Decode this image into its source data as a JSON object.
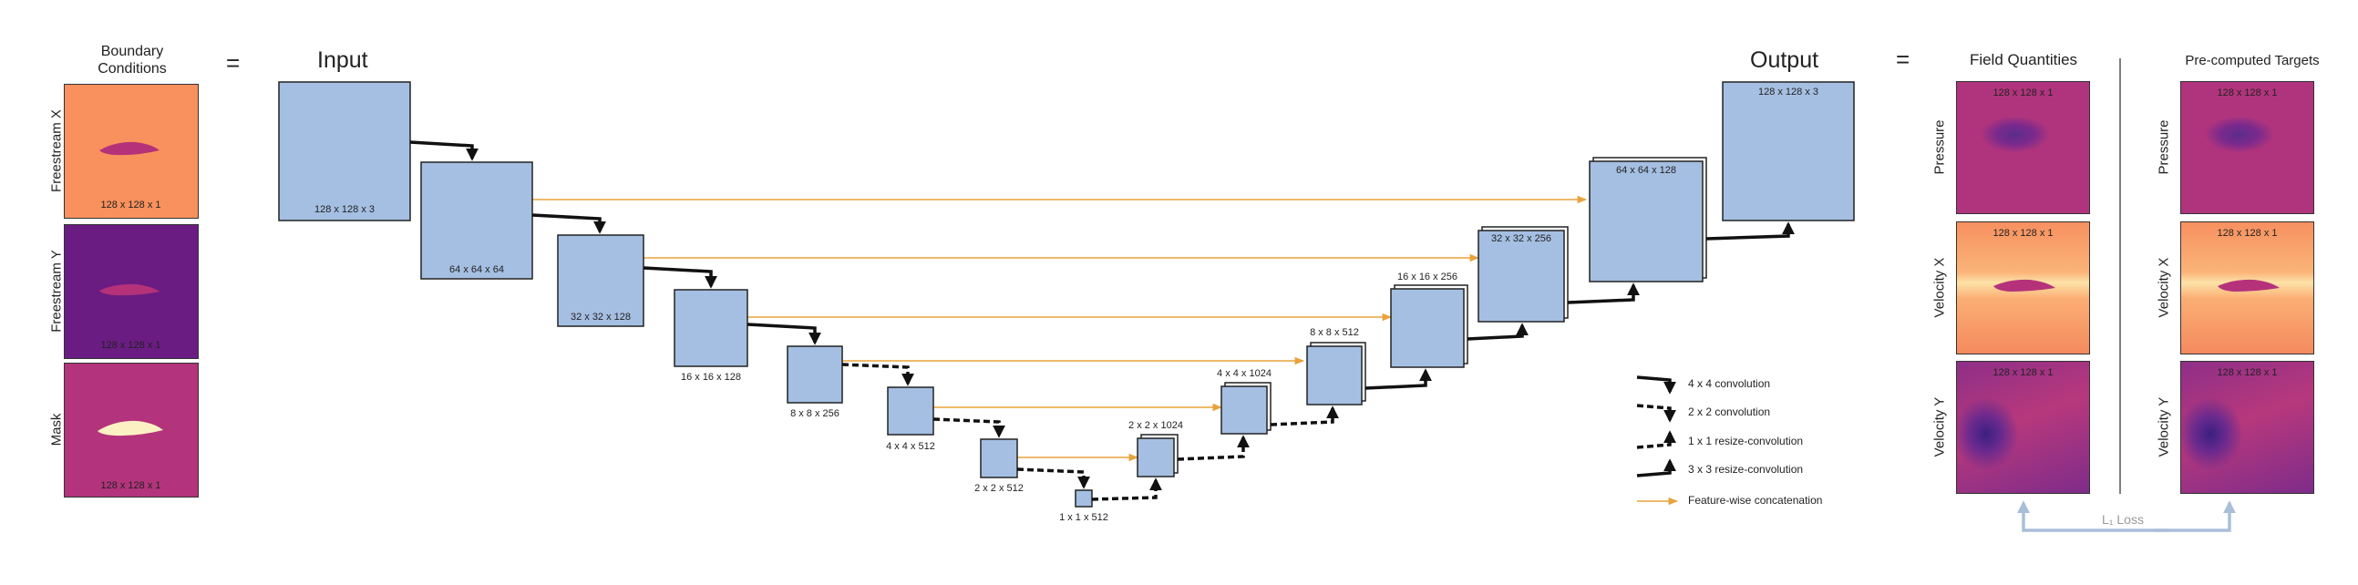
{
  "headers": {
    "boundary_conditions": "Boundary\nConditions",
    "equals_left": "=",
    "input": "Input",
    "output": "Output",
    "equals_right": "=",
    "field_quantities": "Field Quantities",
    "precomputed_targets": "Pre-computed Targets"
  },
  "boundary_tiles": [
    {
      "label": "Freestream X",
      "dims": "128 x 128 x 1"
    },
    {
      "label": "Freestream Y",
      "dims": "128 x 128 x 1"
    },
    {
      "label": "Mask",
      "dims": "128 x 128 x 1"
    }
  ],
  "encoder": [
    {
      "dims": "128 x 128 x 3"
    },
    {
      "dims": "64 x 64 x 64"
    },
    {
      "dims": "32 x 32 x 128"
    },
    {
      "dims": "16 x 16 x 128"
    },
    {
      "dims": "8 x 8 x 256"
    },
    {
      "dims": "4 x 4 x 512"
    },
    {
      "dims": "2 x 2 x 512"
    },
    {
      "dims": "1 x 1 x 512"
    }
  ],
  "decoder": [
    {
      "dims": "2 x 2 x 1024"
    },
    {
      "dims": "4 x 4 x 1024"
    },
    {
      "dims": "8 x 8 x 512"
    },
    {
      "dims": "16 x 16 x 256"
    },
    {
      "dims": "32 x 32 x 256"
    },
    {
      "dims": "64 x 64 x 128"
    },
    {
      "dims": "128 x 128 x 3"
    }
  ],
  "legend": {
    "items": [
      {
        "label": "4 x 4 convolution"
      },
      {
        "label": "2 x 2 convolution"
      },
      {
        "label": "1 x 1 resize-convolution"
      },
      {
        "label": "3 x 3 resize-convolution"
      },
      {
        "label": "Feature-wise concatenation"
      }
    ]
  },
  "field_tiles": [
    {
      "label": "Pressure",
      "dims": "128 x 128 x 1"
    },
    {
      "label": "Velocity X",
      "dims": "128 x 128 x 1"
    },
    {
      "label": "Velocity Y",
      "dims": "128 x 128 x 1"
    }
  ],
  "target_tiles": [
    {
      "label": "Pressure",
      "dims": "128 x 128 x 1"
    },
    {
      "label": "Velocity X",
      "dims": "128 x 128 x 1"
    },
    {
      "label": "Velocity Y",
      "dims": "128 x 128 x 1"
    }
  ],
  "loss_label": "L₁ Loss",
  "colors": {
    "block_fill": "#a5bfe2",
    "concat_arrow": "#e8a33c",
    "loss_arrow": "#a9bfd8",
    "legend_bg": "#ebebeb"
  }
}
